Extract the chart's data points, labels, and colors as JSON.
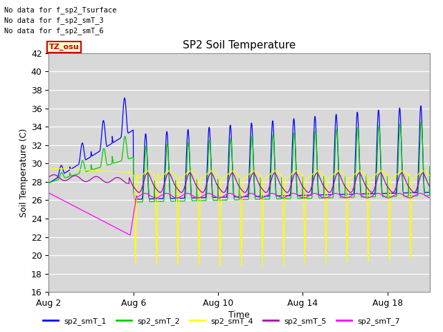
{
  "title": "SP2 Soil Temperature",
  "xlabel": "Time",
  "ylabel": "Soil Temperature (C)",
  "ylim": [
    16,
    42
  ],
  "yticks": [
    16,
    18,
    20,
    22,
    24,
    26,
    28,
    30,
    32,
    34,
    36,
    38,
    40,
    42
  ],
  "bg_color": "#d8d8d8",
  "no_data_lines": [
    "No data for f_sp2_Tsurface",
    "No data for f_sp2_smT_3",
    "No data for f_sp2_smT_6"
  ],
  "tz_label": "TZ_osu",
  "legend": [
    {
      "label": "sp2_smT_1",
      "color": "#0000ff"
    },
    {
      "label": "sp2_smT_2",
      "color": "#00cc00"
    },
    {
      "label": "sp2_smT_4",
      "color": "#ffff00"
    },
    {
      "label": "sp2_smT_5",
      "color": "#aa00aa"
    },
    {
      "label": "sp2_smT_7",
      "color": "#ff00ff"
    }
  ],
  "x_tick_labels": [
    "Aug 2",
    "Aug 6",
    "Aug 10",
    "Aug 14",
    "Aug 18"
  ],
  "x_tick_positions": [
    2,
    6,
    10,
    14,
    18
  ]
}
